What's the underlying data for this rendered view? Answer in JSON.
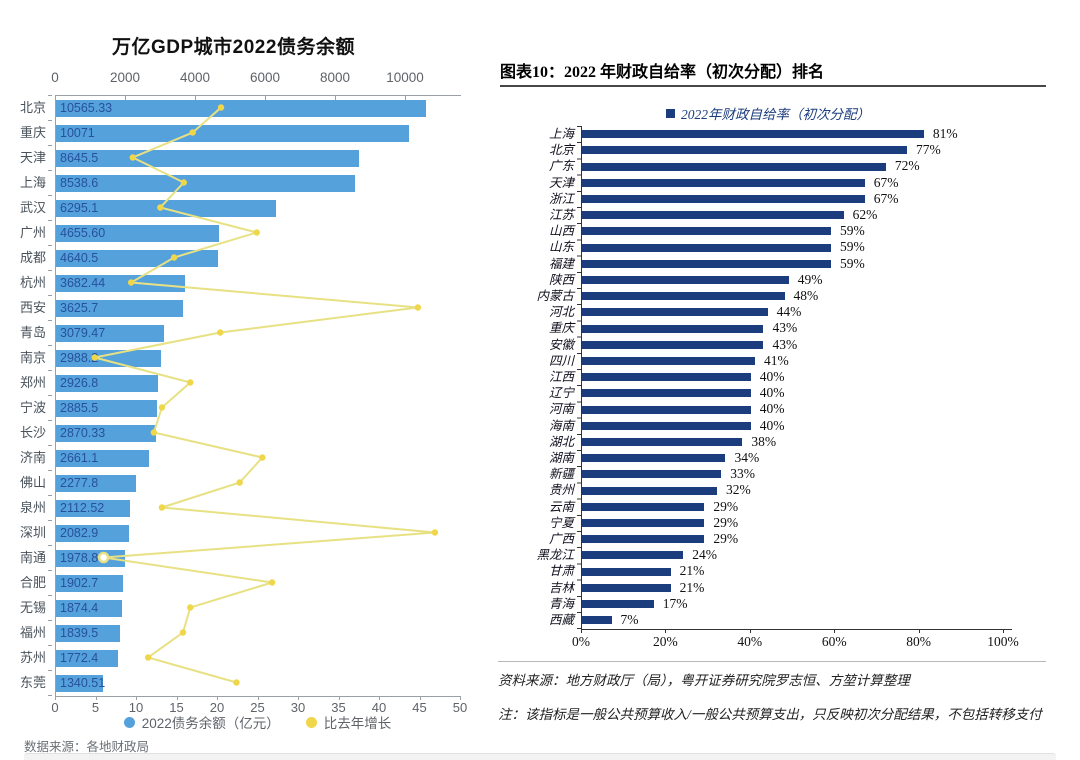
{
  "colors": {
    "bar_blue": "#55A1DC",
    "bar_label": "#27519C",
    "line_yellow": "#E7E183",
    "marker_yellow": "#EFD64B",
    "navy": "#1B3D7D"
  },
  "chart_data": [
    {
      "type": "bar",
      "orientation": "horizontal",
      "title": "万亿GDP城市2022债务余额",
      "source": "数据来源：各地财政局",
      "categories": [
        "北京",
        "重庆",
        "天津",
        "上海",
        "武汉",
        "广州",
        "成都",
        "杭州",
        "西安",
        "青岛",
        "南京",
        "郑州",
        "宁波",
        "长沙",
        "济南",
        "佛山",
        "泉州",
        "深圳",
        "南通",
        "合肥",
        "无锡",
        "福州",
        "苏州",
        "东莞"
      ],
      "series": [
        {
          "name": "2022债务余额（亿元）",
          "type": "bar",
          "values": [
            10565.33,
            10071,
            8645.5,
            8538.6,
            6295.1,
            4655.6,
            4640.5,
            3682.44,
            3625.7,
            3079.47,
            2988.2,
            2926.8,
            2885.5,
            2870.33,
            2661.1,
            2277.8,
            2112.52,
            2082.9,
            1978.8,
            1902.7,
            1874.4,
            1839.5,
            1772.4,
            1340.51
          ],
          "labels": [
            "10565.33",
            "10071",
            "8645.5",
            "8538.6",
            "6295.1",
            "4655.60",
            "4640.5",
            "3682.44",
            "3625.7",
            "3079.47",
            "2988.2",
            "2926.8",
            "2885.5",
            "2870.33",
            "2661.1",
            "2277.8",
            "2112.52",
            "2082.9",
            "1978.8",
            "1902.7",
            "1874.4",
            "1839.5",
            "1772.4",
            "1340.51"
          ]
        },
        {
          "name": "比去年增长",
          "type": "line",
          "highlight_index": 18,
          "values": [
            20.5,
            17.0,
            9.6,
            15.9,
            13.0,
            24.9,
            14.7,
            9.4,
            44.8,
            20.4,
            4.9,
            16.7,
            13.2,
            12.2,
            25.6,
            22.8,
            13.2,
            46.9,
            6.0,
            26.8,
            16.7,
            15.8,
            11.5,
            22.4
          ]
        }
      ],
      "bar_axis": {
        "position": "top",
        "ticks": [
          0,
          2000,
          4000,
          6000,
          8000,
          10000
        ],
        "range": [
          0,
          11570
        ]
      },
      "line_axis": {
        "position": "bottom",
        "ticks": [
          0,
          5,
          10,
          15,
          20,
          25,
          30,
          35,
          40,
          45,
          50
        ],
        "range": [
          0,
          50
        ]
      },
      "legend_position": "bottom",
      "grid": false
    },
    {
      "type": "bar",
      "orientation": "horizontal",
      "title": "图表10：2022 年财政自给率（初次分配）排名",
      "legend": "2022年财政自给率（初次分配）",
      "categories": [
        "上海",
        "北京",
        "广东",
        "天津",
        "浙江",
        "江苏",
        "山西",
        "山东",
        "福建",
        "陕西",
        "内蒙古",
        "河北",
        "重庆",
        "安徽",
        "四川",
        "江西",
        "辽宁",
        "河南",
        "海南",
        "湖北",
        "湖南",
        "新疆",
        "贵州",
        "云南",
        "宁夏",
        "广西",
        "黑龙江",
        "甘肃",
        "吉林",
        "青海",
        "西藏"
      ],
      "values": [
        81,
        77,
        72,
        67,
        67,
        62,
        59,
        59,
        59,
        49,
        48,
        44,
        43,
        43,
        41,
        40,
        40,
        40,
        40,
        38,
        34,
        33,
        32,
        29,
        29,
        29,
        24,
        21,
        21,
        17,
        7
      ],
      "labels": [
        "81%",
        "77%",
        "72%",
        "67%",
        "67%",
        "62%",
        "59%",
        "59%",
        "59%",
        "49%",
        "48%",
        "44%",
        "43%",
        "43%",
        "41%",
        "40%",
        "40%",
        "40%",
        "40%",
        "38%",
        "34%",
        "33%",
        "32%",
        "29%",
        "29%",
        "29%",
        "24%",
        "21%",
        "21%",
        "17%",
        "7%"
      ],
      "x_axis": {
        "ticks": [
          0,
          20,
          40,
          60,
          80,
          100
        ],
        "tick_labels": [
          "0%",
          "20%",
          "40%",
          "60%",
          "80%",
          "100%"
        ],
        "range": [
          0,
          100
        ]
      },
      "source": "资料来源：地方财政厅（局），粤开证券研究院罗志恒、方堃计算整理",
      "note": "注：该指标是一般公共预算收入/一般公共预算支出，只反映初次分配结果，不包括转移支付",
      "legend_position": "top",
      "grid": false
    }
  ]
}
